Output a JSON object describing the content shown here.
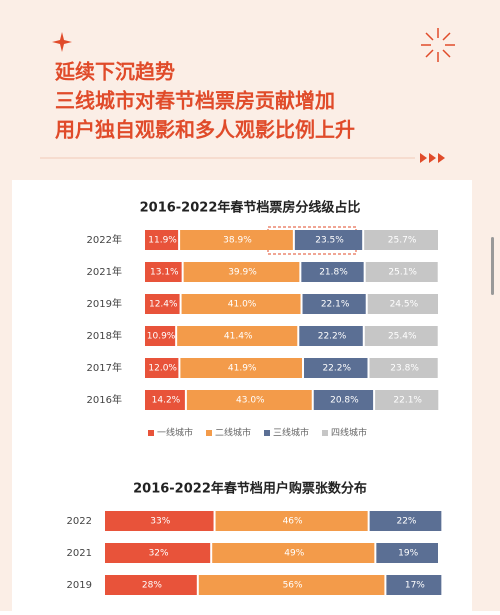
{
  "header": {
    "lines": [
      "延续下沉趋势",
      "三线城市对春节档票房贡献增加",
      "用户独自观影和多人观影比例上升"
    ]
  },
  "chart_data": [
    {
      "type": "stacked-bar-horizontal",
      "title": "2016-2022年春节档票房分线级占比",
      "categories": [
        "2022年",
        "2021年",
        "2019年",
        "2018年",
        "2017年",
        "2016年"
      ],
      "xlim": [
        0,
        100
      ],
      "series": [
        {
          "name": "一线城市",
          "color": "#e8533a",
          "values": [
            11.9,
            13.1,
            12.4,
            10.9,
            12.0,
            14.2
          ],
          "value_labels": [
            "11.9%",
            "13.1%",
            "12.4%",
            "10.9%",
            "12.0%",
            "14.2%"
          ]
        },
        {
          "name": "二线城市",
          "color": "#f39b4a",
          "values": [
            38.9,
            39.9,
            41.0,
            41.4,
            41.9,
            43.0
          ],
          "value_labels": [
            "38.9%",
            "39.9%",
            "41.0%",
            "41.4%",
            "41.9%",
            "43.0%"
          ]
        },
        {
          "name": "三线城市",
          "color": "#5b6f94",
          "values": [
            23.5,
            21.8,
            22.1,
            22.2,
            22.2,
            20.8
          ],
          "value_labels": [
            "23.5%",
            "21.8%",
            "22.1%",
            "22.2%",
            "22.2%",
            "20.8%"
          ]
        },
        {
          "name": "四线城市",
          "color": "#c6c6c6",
          "values": [
            25.7,
            25.1,
            24.5,
            25.4,
            23.8,
            22.1
          ],
          "value_labels": [
            "25.7%",
            "25.1%",
            "24.5%",
            "25.4%",
            "23.8%",
            "22.1%"
          ]
        }
      ]
    },
    {
      "type": "stacked-bar-horizontal",
      "title": "2016-2022年春节档用户购票张数分布",
      "categories": [
        "2022",
        "2021",
        "2019"
      ],
      "xlim": [
        0,
        100
      ],
      "series": [
        {
          "color": "#e8533a",
          "values": [
            33,
            32,
            28
          ],
          "value_labels": [
            "33%",
            "32%",
            "28%"
          ]
        },
        {
          "color": "#f39b4a",
          "values": [
            46,
            49,
            56
          ],
          "value_labels": [
            "46%",
            "49%",
            "56%"
          ]
        },
        {
          "color": "#5b6f94",
          "values": [
            22,
            19,
            17
          ],
          "value_labels": [
            "22%",
            "19%",
            "17%"
          ]
        }
      ]
    }
  ]
}
